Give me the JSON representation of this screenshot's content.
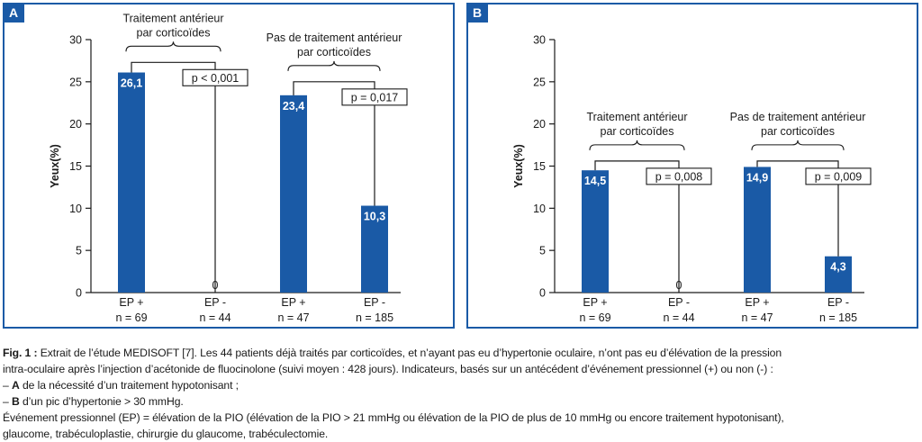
{
  "colors": {
    "bar": "#1a5aa6",
    "frame": "#1a5aa6",
    "axis": "#1a1a1a"
  },
  "chart_data": [
    {
      "id": "A",
      "type": "bar",
      "ylabel": "Yeux(%)",
      "ylim": [
        0,
        30
      ],
      "yticks": [
        0,
        5,
        10,
        15,
        20,
        25,
        30
      ],
      "categories": [
        "EP +\nn = 69",
        "EP -\nn = 44",
        "EP +\nn = 47",
        "EP -\nn = 185"
      ],
      "values": [
        26.1,
        0,
        23.4,
        10.3
      ],
      "value_labels": [
        "26,1",
        "0",
        "23,4",
        "10,3"
      ],
      "groups": [
        {
          "label_line1": "Traitement antérieur",
          "label_line2": "par corticoïdes",
          "bars": [
            0,
            1
          ],
          "pvalue": "p < 0,001",
          "bracket_y": 27.3
        },
        {
          "label_line1": "Pas de traitement antérieur",
          "label_line2": "par corticoïdes",
          "bars": [
            2,
            3
          ],
          "pvalue": "p = 0,017",
          "bracket_y": 25.0
        }
      ]
    },
    {
      "id": "B",
      "type": "bar",
      "ylabel": "Yeux(%)",
      "ylim": [
        0,
        30
      ],
      "yticks": [
        0,
        5,
        10,
        15,
        20,
        25,
        30
      ],
      "categories": [
        "EP +\nn = 69",
        "EP -\nn = 44",
        "EP +\nn = 47",
        "EP -\nn = 185"
      ],
      "values": [
        14.5,
        0,
        14.9,
        4.3
      ],
      "value_labels": [
        "14,5",
        "0",
        "14,9",
        "4,3"
      ],
      "groups": [
        {
          "label_line1": "Traitement antérieur",
          "label_line2": "par corticoïdes",
          "bars": [
            0,
            1
          ],
          "pvalue": "p = 0,008",
          "bracket_y": 15.6
        },
        {
          "label_line1": "Pas de traitement antérieur",
          "label_line2": "par corticoïdes",
          "bars": [
            2,
            3
          ],
          "pvalue": "p = 0,009",
          "bracket_y": 15.6
        }
      ]
    }
  ],
  "caption": {
    "fig_label": "Fig. 1 :",
    "line1": " Extrait de l’étude MEDISOFT [7]. Les 44 patients déjà traités par corticoïdes, et n’ayant pas eu d’hypertonie oculaire, n’ont pas eu d’élévation de la pression",
    "line2": "intra-oculaire après l’injection d’acétonide de fluocinolone (suivi moyen : 428 jours). Indicateurs, basés sur un antécédent d’événement pressionnel (+) ou non (-) :",
    "line3_prefix": "– ",
    "line3_bold": "A",
    "line3_text": " de la nécessité d’un traitement hypotonisant ;",
    "line4_prefix": "– ",
    "line4_bold": "B",
    "line4_text": " d’un pic d’hypertonie > 30 mmHg.",
    "line5": "Événement pressionnel (EP) = élévation de la PIO (élévation de la PIO > 21 mmHg ou élévation de la PIO de plus de 10 mmHg ou encore traitement hypotonisant),",
    "line6": "glaucome, trabéculoplastie, chirurgie du glaucome, trabéculectomie."
  }
}
